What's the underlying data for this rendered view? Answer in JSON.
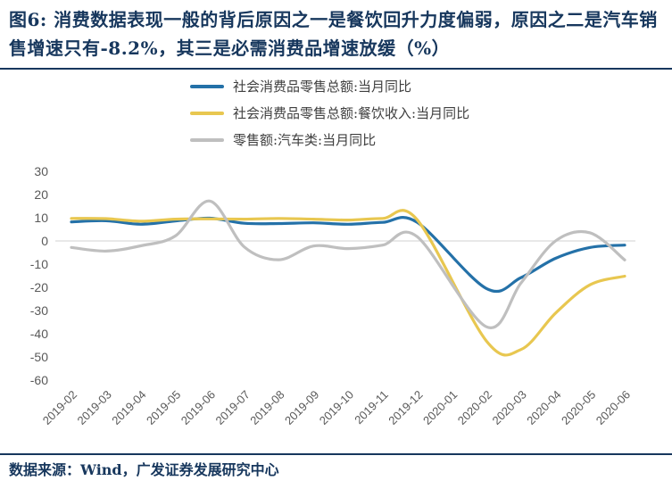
{
  "figure": {
    "title": "图6: 消费数据表现一般的背后原因之一是餐饮回升力度偏弱，原因之二是汽车销售增速只有-8.2%，其三是必需消费品增速放缓（%）",
    "source": "数据来源：Wind，广发证券发展研究中心"
  },
  "colors": {
    "title_navy": "#17375D",
    "axis_text": "#595959",
    "zero_line": "#D9D9D9"
  },
  "chart_data": {
    "type": "line",
    "title": "图6: 消费数据表现一般的背后原因之一是餐饮回升力度偏弱，原因之二是汽车销售增速只有-8.2%，其三是必需消费品增速放缓（%）",
    "categories": [
      "2019-02",
      "2019-03",
      "2019-04",
      "2019-05",
      "2019-06",
      "2019-07",
      "2019-08",
      "2019-09",
      "2019-10",
      "2019-11",
      "2019-12",
      "2020-01",
      "2020-02",
      "2020-03",
      "2020-04",
      "2020-05",
      "2020-06"
    ],
    "series": [
      {
        "name": "社会消费品零售总额:当月同比",
        "color": "#2471A8",
        "values": [
          8.2,
          8.7,
          7.2,
          8.6,
          9.8,
          7.6,
          7.5,
          7.8,
          7.2,
          8.0,
          8.0,
          null,
          -20.5,
          -15.8,
          -7.5,
          -2.8,
          -1.8
        ]
      },
      {
        "name": "社会消费品零售总额:餐饮收入:当月同比",
        "color": "#E8C750",
        "values": [
          9.7,
          9.6,
          8.5,
          9.4,
          9.5,
          9.4,
          9.7,
          9.4,
          9.0,
          9.7,
          9.1,
          null,
          -43.1,
          -46.8,
          -31.1,
          -18.9,
          -15.2
        ]
      },
      {
        "name": "零售额:汽车类:当月同比",
        "color": "#BFBFBF",
        "values": [
          -2.8,
          -4.4,
          -2.1,
          2.1,
          17.2,
          -2.6,
          -8.1,
          -2.2,
          -3.3,
          -1.8,
          1.8,
          null,
          -37.0,
          -18.1,
          0.0,
          3.5,
          -8.2
        ]
      }
    ],
    "ylim": [
      -60,
      30
    ],
    "yticks": [
      30,
      20,
      10,
      0,
      -10,
      -20,
      -30,
      -40,
      -50,
      -60
    ],
    "grid": "zero-line-only",
    "legend_position": "top-left",
    "smoothed": true
  }
}
